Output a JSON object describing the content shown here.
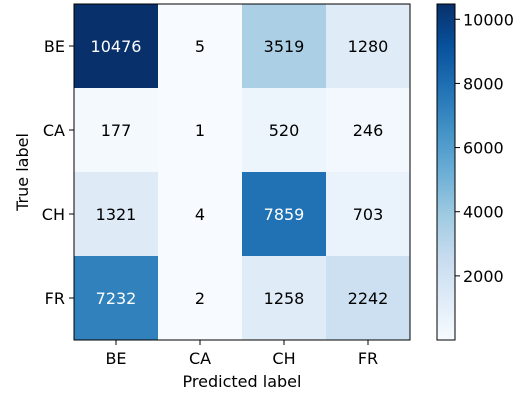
{
  "chart_data": {
    "type": "heatmap",
    "title": "",
    "xlabel": "Predicted label",
    "ylabel": "True label",
    "x_categories": [
      "BE",
      "CA",
      "CH",
      "FR"
    ],
    "y_categories": [
      "BE",
      "CA",
      "CH",
      "FR"
    ],
    "values": [
      [
        10476,
        5,
        3519,
        1280
      ],
      [
        177,
        1,
        520,
        246
      ],
      [
        1321,
        4,
        7859,
        703
      ],
      [
        7232,
        2,
        1258,
        2242
      ]
    ],
    "colormap": "Blues",
    "colorbar": {
      "range": [
        1,
        10476
      ],
      "ticks": [
        2000,
        4000,
        6000,
        8000,
        10000
      ],
      "tick_labels": [
        "2000",
        "4000",
        "6000",
        "8000",
        "10000"
      ]
    },
    "cell_text_colors": {
      "light": "#ffffff",
      "dark": "#000000"
    }
  }
}
